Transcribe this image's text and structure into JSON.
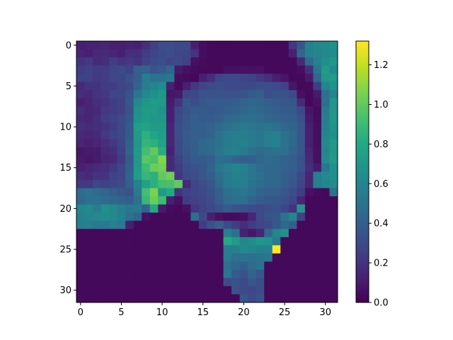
{
  "chart_data": {
    "type": "heatmap",
    "title": "",
    "xlabel": "",
    "ylabel": "",
    "grid": false,
    "colormap": "viridis",
    "vmin": 0.0,
    "vmax": 1.32,
    "x_range": [
      -0.5,
      31.5
    ],
    "y_range": [
      -0.5,
      31.5
    ],
    "x_ticks": [
      0,
      5,
      10,
      15,
      20,
      25,
      30
    ],
    "y_ticks": [
      0,
      5,
      10,
      15,
      20,
      25,
      30
    ],
    "x_tick_labels": [
      "0",
      "5",
      "10",
      "15",
      "20",
      "25",
      "30"
    ],
    "y_tick_labels": [
      "0",
      "5",
      "10",
      "15",
      "20",
      "25",
      "30"
    ],
    "colorbar": {
      "ticks": [
        0.0,
        0.2,
        0.4,
        0.6,
        0.8,
        1.0,
        1.2
      ],
      "tick_labels": [
        "0.0",
        "0.2",
        "0.4",
        "0.6",
        "0.8",
        "1.0",
        "1.2"
      ]
    },
    "values": [
      [
        0.12,
        0.13,
        0.13,
        0.14,
        0.12,
        0.12,
        0.13,
        0.12,
        0.18,
        0.25,
        0.32,
        0.32,
        0.3,
        0.3,
        0.12,
        0.05,
        0.03,
        0.03,
        0.03,
        0.03,
        0.03,
        0.03,
        0.03,
        0.03,
        0.03,
        0.03,
        0.22,
        0.36,
        0.58,
        0.62,
        0.62,
        0.66
      ],
      [
        0.14,
        0.12,
        0.16,
        0.16,
        0.14,
        0.12,
        0.18,
        0.18,
        0.24,
        0.28,
        0.3,
        0.32,
        0.28,
        0.28,
        0.2,
        0.05,
        0.03,
        0.03,
        0.03,
        0.03,
        0.03,
        0.03,
        0.03,
        0.03,
        0.03,
        0.03,
        0.12,
        0.44,
        0.58,
        0.6,
        0.62,
        0.64
      ],
      [
        0.2,
        0.22,
        0.16,
        0.18,
        0.24,
        0.2,
        0.22,
        0.2,
        0.26,
        0.3,
        0.32,
        0.28,
        0.3,
        0.26,
        0.06,
        0.04,
        0.03,
        0.03,
        0.03,
        0.03,
        0.03,
        0.03,
        0.03,
        0.03,
        0.03,
        0.03,
        0.03,
        0.16,
        0.45,
        0.58,
        0.66,
        0.7
      ],
      [
        0.24,
        0.26,
        0.24,
        0.24,
        0.28,
        0.3,
        0.26,
        0.4,
        0.42,
        0.34,
        0.38,
        0.44,
        0.1,
        0.06,
        0.04,
        0.03,
        0.03,
        0.03,
        0.06,
        0.06,
        0.06,
        0.06,
        0.06,
        0.03,
        0.03,
        0.03,
        0.03,
        0.05,
        0.18,
        0.52,
        0.72,
        0.64
      ],
      [
        0.26,
        0.26,
        0.22,
        0.24,
        0.28,
        0.28,
        0.34,
        0.4,
        0.56,
        0.5,
        0.5,
        0.52,
        0.05,
        0.04,
        0.03,
        0.12,
        0.18,
        0.28,
        0.3,
        0.3,
        0.28,
        0.26,
        0.22,
        0.18,
        0.12,
        0.08,
        0.03,
        0.03,
        0.1,
        0.44,
        0.7,
        0.72
      ],
      [
        0.16,
        0.2,
        0.2,
        0.24,
        0.24,
        0.28,
        0.3,
        0.42,
        0.56,
        0.6,
        0.64,
        0.12,
        0.04,
        0.12,
        0.22,
        0.28,
        0.3,
        0.32,
        0.3,
        0.3,
        0.3,
        0.3,
        0.32,
        0.32,
        0.3,
        0.26,
        0.08,
        0.03,
        0.03,
        0.24,
        0.6,
        0.68
      ],
      [
        0.18,
        0.16,
        0.2,
        0.22,
        0.28,
        0.28,
        0.34,
        0.52,
        0.62,
        0.66,
        0.7,
        0.08,
        0.1,
        0.28,
        0.3,
        0.34,
        0.34,
        0.34,
        0.34,
        0.34,
        0.34,
        0.38,
        0.4,
        0.32,
        0.34,
        0.34,
        0.3,
        0.06,
        0.03,
        0.1,
        0.48,
        0.6
      ],
      [
        0.12,
        0.14,
        0.18,
        0.2,
        0.24,
        0.26,
        0.36,
        0.62,
        0.7,
        0.72,
        0.72,
        0.1,
        0.2,
        0.36,
        0.32,
        0.36,
        0.38,
        0.38,
        0.38,
        0.4,
        0.42,
        0.44,
        0.42,
        0.4,
        0.38,
        0.36,
        0.36,
        0.16,
        0.03,
        0.06,
        0.48,
        0.7
      ],
      [
        0.18,
        0.14,
        0.16,
        0.22,
        0.24,
        0.26,
        0.34,
        0.66,
        0.72,
        0.72,
        0.68,
        0.12,
        0.28,
        0.34,
        0.38,
        0.38,
        0.36,
        0.38,
        0.4,
        0.42,
        0.44,
        0.46,
        0.44,
        0.42,
        0.4,
        0.38,
        0.38,
        0.3,
        0.08,
        0.04,
        0.54,
        0.7
      ],
      [
        0.16,
        0.14,
        0.18,
        0.24,
        0.26,
        0.3,
        0.36,
        0.68,
        0.72,
        0.7,
        0.7,
        0.12,
        0.3,
        0.36,
        0.4,
        0.38,
        0.38,
        0.4,
        0.44,
        0.46,
        0.48,
        0.48,
        0.46,
        0.44,
        0.42,
        0.4,
        0.4,
        0.34,
        0.1,
        0.04,
        0.56,
        0.7
      ],
      [
        0.18,
        0.16,
        0.18,
        0.2,
        0.24,
        0.3,
        0.38,
        0.74,
        0.76,
        0.72,
        0.72,
        0.14,
        0.32,
        0.36,
        0.4,
        0.4,
        0.42,
        0.46,
        0.5,
        0.52,
        0.54,
        0.52,
        0.5,
        0.52,
        0.48,
        0.44,
        0.42,
        0.36,
        0.12,
        0.05,
        0.58,
        0.68
      ],
      [
        0.16,
        0.14,
        0.16,
        0.22,
        0.26,
        0.3,
        0.38,
        0.72,
        0.84,
        0.78,
        0.74,
        0.14,
        0.32,
        0.38,
        0.4,
        0.4,
        0.42,
        0.5,
        0.54,
        0.56,
        0.56,
        0.54,
        0.52,
        0.56,
        0.58,
        0.5,
        0.44,
        0.36,
        0.12,
        0.05,
        0.6,
        0.66
      ],
      [
        0.14,
        0.12,
        0.14,
        0.18,
        0.22,
        0.28,
        0.4,
        0.7,
        0.86,
        0.84,
        0.76,
        0.14,
        0.3,
        0.38,
        0.4,
        0.44,
        0.46,
        0.5,
        0.54,
        0.56,
        0.58,
        0.54,
        0.52,
        0.56,
        0.58,
        0.5,
        0.44,
        0.36,
        0.12,
        0.05,
        0.62,
        0.72
      ],
      [
        0.08,
        0.1,
        0.1,
        0.16,
        0.18,
        0.26,
        0.42,
        0.72,
        0.92,
        1.0,
        0.82,
        0.12,
        0.3,
        0.36,
        0.4,
        0.44,
        0.46,
        0.52,
        0.56,
        0.58,
        0.54,
        0.5,
        0.46,
        0.48,
        0.5,
        0.48,
        0.42,
        0.36,
        0.14,
        0.06,
        0.6,
        0.7
      ],
      [
        0.1,
        0.08,
        0.1,
        0.14,
        0.16,
        0.24,
        0.38,
        0.7,
        0.98,
        0.94,
        1.08,
        0.16,
        0.26,
        0.34,
        0.38,
        0.38,
        0.4,
        0.48,
        0.46,
        0.42,
        0.4,
        0.4,
        0.44,
        0.46,
        0.44,
        0.42,
        0.4,
        0.34,
        0.16,
        0.06,
        0.62,
        0.72
      ],
      [
        0.12,
        0.14,
        0.16,
        0.18,
        0.22,
        0.28,
        0.4,
        0.72,
        0.9,
        1.02,
        1.04,
        0.16,
        0.24,
        0.32,
        0.34,
        0.36,
        0.42,
        0.52,
        0.56,
        0.6,
        0.58,
        0.52,
        0.46,
        0.44,
        0.44,
        0.42,
        0.4,
        0.34,
        0.18,
        0.1,
        0.52,
        0.66
      ],
      [
        0.18,
        0.16,
        0.2,
        0.2,
        0.26,
        0.28,
        0.42,
        0.74,
        0.88,
        0.84,
        1.0,
        1.04,
        0.22,
        0.3,
        0.32,
        0.36,
        0.4,
        0.48,
        0.54,
        0.58,
        0.56,
        0.52,
        0.48,
        0.44,
        0.44,
        0.4,
        0.38,
        0.3,
        0.14,
        0.56,
        0.62,
        0.66
      ],
      [
        0.22,
        0.22,
        0.28,
        0.26,
        0.28,
        0.3,
        0.4,
        0.58,
        0.76,
        0.84,
        0.92,
        0.94,
        1.0,
        0.16,
        0.28,
        0.32,
        0.36,
        0.46,
        0.54,
        0.56,
        0.56,
        0.5,
        0.46,
        0.44,
        0.44,
        0.4,
        0.36,
        0.28,
        0.14,
        0.56,
        0.6,
        0.64
      ],
      [
        0.46,
        0.5,
        0.46,
        0.44,
        0.4,
        0.36,
        0.34,
        0.54,
        0.92,
        1.06,
        0.72,
        0.8,
        0.2,
        0.26,
        0.28,
        0.3,
        0.34,
        0.4,
        0.48,
        0.5,
        0.52,
        0.48,
        0.42,
        0.4,
        0.4,
        0.36,
        0.32,
        0.24,
        0.06,
        0.04,
        0.03,
        0.5
      ],
      [
        0.44,
        0.48,
        0.5,
        0.46,
        0.44,
        0.42,
        0.4,
        0.48,
        0.88,
        1.02,
        0.9,
        0.12,
        0.06,
        0.24,
        0.26,
        0.28,
        0.32,
        0.4,
        0.46,
        0.48,
        0.48,
        0.42,
        0.38,
        0.36,
        0.36,
        0.34,
        0.28,
        0.14,
        0.03,
        0.03,
        0.03,
        0.03
      ],
      [
        0.6,
        0.62,
        0.56,
        0.66,
        0.62,
        0.56,
        0.52,
        0.54,
        0.42,
        0.8,
        0.1,
        0.04,
        0.03,
        0.06,
        0.22,
        0.26,
        0.3,
        0.34,
        0.38,
        0.34,
        0.32,
        0.3,
        0.3,
        0.32,
        0.34,
        0.28,
        0.2,
        0.7,
        0.03,
        0.03,
        0.03,
        0.03
      ],
      [
        0.58,
        0.6,
        0.62,
        0.64,
        0.62,
        0.58,
        0.5,
        0.44,
        0.06,
        0.03,
        0.03,
        0.03,
        0.03,
        0.03,
        0.48,
        0.3,
        0.12,
        0.06,
        0.04,
        0.04,
        0.06,
        0.14,
        0.3,
        0.34,
        0.36,
        0.5,
        0.6,
        0.26,
        0.03,
        0.03,
        0.03,
        0.03
      ],
      [
        0.56,
        0.58,
        0.54,
        0.54,
        0.58,
        0.54,
        0.12,
        0.03,
        0.03,
        0.03,
        0.03,
        0.03,
        0.03,
        0.03,
        0.03,
        0.24,
        0.34,
        0.4,
        0.3,
        0.24,
        0.18,
        0.24,
        0.28,
        0.3,
        0.36,
        0.44,
        0.4,
        0.03,
        0.03,
        0.03,
        0.03,
        0.03
      ],
      [
        0.03,
        0.03,
        0.03,
        0.03,
        0.03,
        0.03,
        0.03,
        0.03,
        0.03,
        0.03,
        0.03,
        0.03,
        0.03,
        0.03,
        0.03,
        0.03,
        0.03,
        0.03,
        0.58,
        0.48,
        0.12,
        0.08,
        0.14,
        0.44,
        0.6,
        0.66,
        0.03,
        0.03,
        0.03,
        0.03,
        0.03,
        0.03
      ],
      [
        0.03,
        0.03,
        0.03,
        0.03,
        0.03,
        0.03,
        0.03,
        0.03,
        0.03,
        0.03,
        0.03,
        0.03,
        0.03,
        0.03,
        0.03,
        0.03,
        0.03,
        0.03,
        0.8,
        0.72,
        0.6,
        0.64,
        0.7,
        0.68,
        0.54,
        0.03,
        0.03,
        0.03,
        0.03,
        0.03,
        0.03,
        0.03
      ],
      [
        0.03,
        0.03,
        0.03,
        0.03,
        0.03,
        0.03,
        0.03,
        0.03,
        0.03,
        0.03,
        0.03,
        0.03,
        0.03,
        0.03,
        0.03,
        0.03,
        0.03,
        0.03,
        0.56,
        0.58,
        0.62,
        0.6,
        0.58,
        0.56,
        1.32,
        0.03,
        0.03,
        0.03,
        0.03,
        0.03,
        0.03,
        0.03
      ],
      [
        0.03,
        0.03,
        0.03,
        0.03,
        0.03,
        0.03,
        0.03,
        0.03,
        0.03,
        0.03,
        0.03,
        0.03,
        0.03,
        0.03,
        0.03,
        0.03,
        0.03,
        0.03,
        0.56,
        0.48,
        0.5,
        0.48,
        0.5,
        0.52,
        0.03,
        0.03,
        0.03,
        0.03,
        0.03,
        0.03,
        0.03,
        0.03
      ],
      [
        0.03,
        0.03,
        0.03,
        0.03,
        0.03,
        0.03,
        0.03,
        0.03,
        0.03,
        0.03,
        0.03,
        0.03,
        0.03,
        0.03,
        0.03,
        0.03,
        0.03,
        0.03,
        0.48,
        0.44,
        0.4,
        0.46,
        0.5,
        0.03,
        0.03,
        0.03,
        0.03,
        0.03,
        0.03,
        0.03,
        0.03,
        0.03
      ],
      [
        0.03,
        0.03,
        0.03,
        0.03,
        0.03,
        0.03,
        0.03,
        0.03,
        0.03,
        0.03,
        0.03,
        0.03,
        0.03,
        0.03,
        0.03,
        0.03,
        0.03,
        0.03,
        0.52,
        0.38,
        0.34,
        0.42,
        0.36,
        0.03,
        0.03,
        0.03,
        0.03,
        0.03,
        0.03,
        0.03,
        0.03,
        0.03
      ],
      [
        0.03,
        0.03,
        0.03,
        0.03,
        0.03,
        0.03,
        0.03,
        0.03,
        0.03,
        0.03,
        0.03,
        0.03,
        0.03,
        0.03,
        0.03,
        0.03,
        0.03,
        0.03,
        0.3,
        0.34,
        0.3,
        0.36,
        0.32,
        0.03,
        0.03,
        0.03,
        0.03,
        0.03,
        0.03,
        0.03,
        0.03,
        0.03
      ],
      [
        0.03,
        0.03,
        0.03,
        0.03,
        0.03,
        0.03,
        0.03,
        0.03,
        0.03,
        0.03,
        0.03,
        0.03,
        0.03,
        0.03,
        0.03,
        0.03,
        0.03,
        0.03,
        0.03,
        0.34,
        0.3,
        0.28,
        0.32,
        0.03,
        0.03,
        0.03,
        0.03,
        0.03,
        0.03,
        0.03,
        0.03,
        0.03
      ],
      [
        0.03,
        0.03,
        0.03,
        0.03,
        0.03,
        0.03,
        0.03,
        0.03,
        0.03,
        0.03,
        0.03,
        0.03,
        0.03,
        0.03,
        0.03,
        0.03,
        0.03,
        0.03,
        0.03,
        0.03,
        0.36,
        0.3,
        0.34,
        0.03,
        0.03,
        0.03,
        0.03,
        0.03,
        0.03,
        0.03,
        0.03,
        0.03
      ]
    ]
  }
}
